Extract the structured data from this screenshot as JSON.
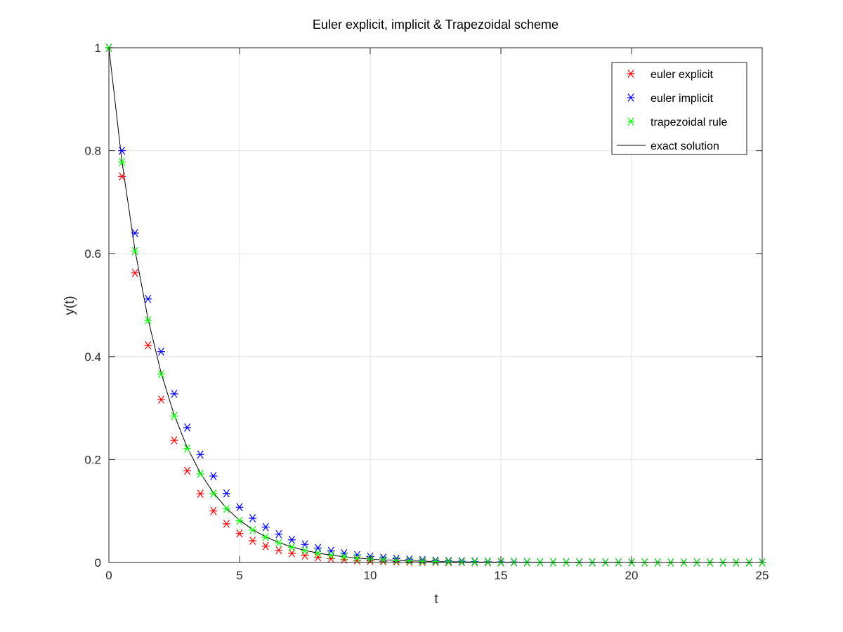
{
  "chart_data": {
    "type": "scatter",
    "title": "Euler explicit, implicit & Trapezoidal scheme",
    "xlabel": "t",
    "ylabel": "y(t)",
    "xlim": [
      0,
      25
    ],
    "ylim": [
      0,
      1
    ],
    "xticks": [
      0,
      5,
      10,
      15,
      20,
      25
    ],
    "yticks": [
      0,
      0.2,
      0.4,
      0.6,
      0.8,
      1
    ],
    "xtick_labels": [
      "0",
      "5",
      "10",
      "15",
      "20",
      "25"
    ],
    "ytick_labels": [
      "0",
      "0.2",
      "0.4",
      "0.6",
      "0.8",
      "1"
    ],
    "grid": true,
    "legend_position": "top-right",
    "x": [
      0,
      0.5,
      1,
      1.5,
      2,
      2.5,
      3,
      3.5,
      4,
      4.5,
      5,
      5.5,
      6,
      6.5,
      7,
      7.5,
      8,
      8.5,
      9,
      9.5,
      10,
      10.5,
      11,
      11.5,
      12,
      12.5,
      13,
      13.5,
      14,
      14.5,
      15,
      15.5,
      16,
      16.5,
      17,
      17.5,
      18,
      18.5,
      19,
      19.5,
      20,
      20.5,
      21,
      21.5,
      22,
      22.5,
      23,
      23.5,
      24,
      24.5,
      25
    ],
    "series": [
      {
        "name": "euler explicit",
        "style": "markers",
        "color": "#ff0000",
        "values": [
          1,
          0.75,
          0.5625,
          0.4219,
          0.3164,
          0.2373,
          0.178,
          0.1335,
          0.1001,
          0.0751,
          0.0563,
          0.0422,
          0.0317,
          0.0238,
          0.0178,
          0.0134,
          0.01,
          0.0075,
          0.0056,
          0.0042,
          0.0032,
          0.0024,
          0.0018,
          0.0013,
          0.001,
          0.0008,
          0.0006,
          0.0004,
          0.0003,
          0.0002,
          0.0002,
          0.0001,
          0.0001,
          0.0001,
          0.0001,
          0,
          0,
          0,
          0,
          0,
          0,
          0,
          0,
          0,
          0,
          0,
          0,
          0,
          0,
          0,
          0
        ]
      },
      {
        "name": "euler implicit",
        "style": "markers",
        "color": "#0000ff",
        "values": [
          1,
          0.8,
          0.64,
          0.512,
          0.4096,
          0.3277,
          0.2621,
          0.2097,
          0.1678,
          0.1342,
          0.1074,
          0.0859,
          0.0687,
          0.055,
          0.044,
          0.0352,
          0.0281,
          0.0225,
          0.018,
          0.0144,
          0.0115,
          0.0092,
          0.0074,
          0.0059,
          0.0047,
          0.0038,
          0.003,
          0.0024,
          0.0019,
          0.0015,
          0.0012,
          0.001,
          0.0008,
          0.0006,
          0.0005,
          0.0004,
          0.0003,
          0.0003,
          0.0002,
          0.0002,
          0.0002,
          0.0001,
          0.0001,
          0.0001,
          0.0001,
          0.0001,
          0,
          0,
          0,
          0,
          0
        ]
      },
      {
        "name": "trapezoidal rule",
        "style": "markers",
        "color": "#00ff00",
        "values": [
          1,
          0.7778,
          0.6049,
          0.4705,
          0.3659,
          0.2846,
          0.2214,
          0.1722,
          0.1339,
          0.1042,
          0.081,
          0.063,
          0.049,
          0.0381,
          0.0297,
          0.0231,
          0.0179,
          0.014,
          0.0109,
          0.0085,
          0.0066,
          0.0051,
          0.004,
          0.0031,
          0.0024,
          0.0019,
          0.0015,
          0.0011,
          0.0009,
          0.0007,
          0.0005,
          0.0004,
          0.0003,
          0.0003,
          0.0002,
          0.0002,
          0.0001,
          0.0001,
          0.0001,
          0.0001,
          0,
          0,
          0,
          0,
          0,
          0,
          0,
          0,
          0,
          0,
          0
        ]
      },
      {
        "name": "exact solution",
        "style": "line",
        "color": "#000000",
        "values": [
          1,
          0.7788,
          0.6065,
          0.4724,
          0.3679,
          0.2865,
          0.2231,
          0.1738,
          0.1353,
          0.1054,
          0.0821,
          0.0639,
          0.0498,
          0.0388,
          0.0302,
          0.0235,
          0.0183,
          0.0143,
          0.0111,
          0.0087,
          0.0067,
          0.0052,
          0.0041,
          0.0032,
          0.0025,
          0.0019,
          0.0015,
          0.0012,
          0.0009,
          0.0007,
          0.0006,
          0.0004,
          0.0003,
          0.0003,
          0.0002,
          0.0002,
          0.0001,
          0.0001,
          0.0001,
          0.0001,
          0,
          0,
          0,
          0,
          0,
          0,
          0,
          0,
          0,
          0,
          0
        ]
      }
    ]
  }
}
